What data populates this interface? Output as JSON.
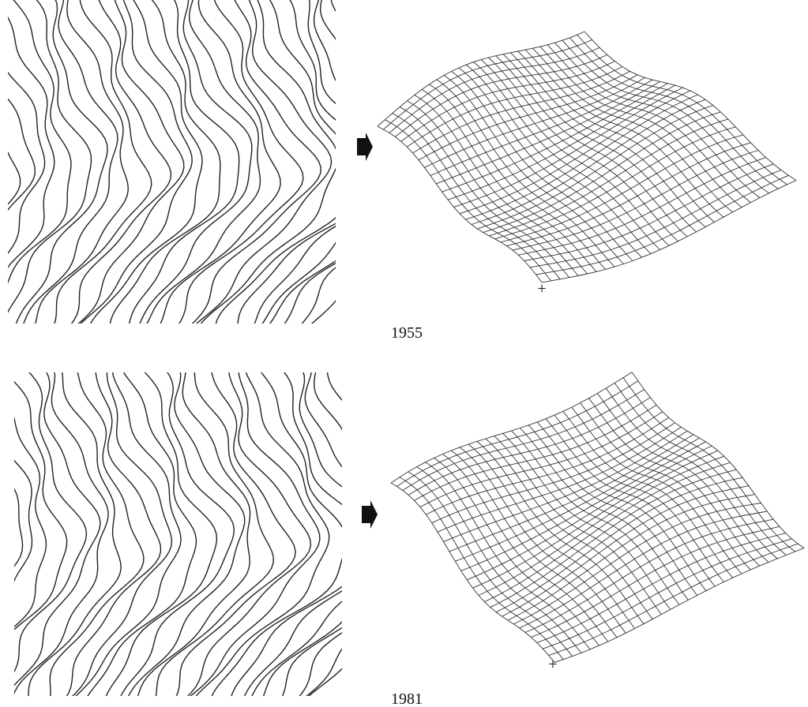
{
  "panels": [
    {
      "year": "1955"
    },
    {
      "year": "1981"
    }
  ]
}
